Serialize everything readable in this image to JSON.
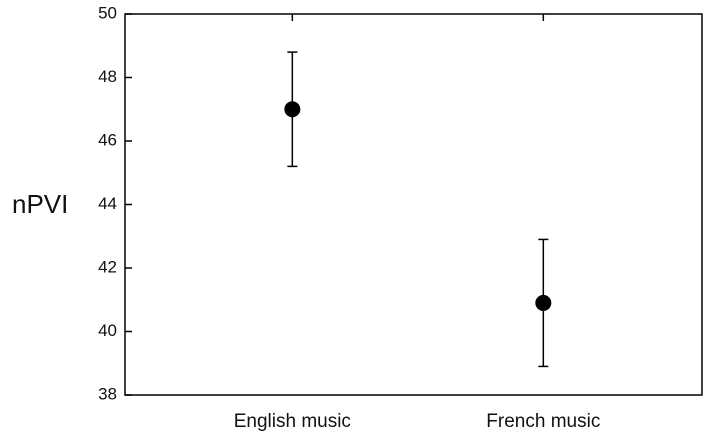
{
  "chart_data": {
    "type": "errorbar",
    "y_label": "nPVI",
    "categories": [
      "English music",
      "French music"
    ],
    "values": [
      47.0,
      40.9
    ],
    "errors": [
      1.8,
      2.0
    ],
    "color": "#000000",
    "ylim": [
      38,
      50
    ],
    "yticks": [
      38,
      40,
      42,
      44,
      46,
      48,
      50
    ]
  }
}
